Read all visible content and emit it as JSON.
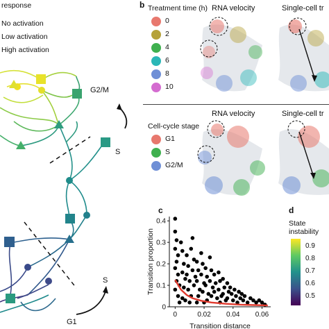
{
  "panel_a": {
    "legend_title": "response",
    "legend_items": [
      "No activation",
      "Low activation",
      "High activation"
    ],
    "labels": {
      "g2m": "G2/M",
      "s_upper": "S",
      "s_lower": "S",
      "g1": "G1"
    }
  },
  "panel_b": {
    "letter": "b",
    "treatment": {
      "title": "Treatment time (h)",
      "items": [
        {
          "label": "0",
          "color": "#e8786e"
        },
        {
          "label": "2",
          "color": "#b5a23a"
        },
        {
          "label": "4",
          "color": "#3fb04f"
        },
        {
          "label": "6",
          "color": "#2bb7b7"
        },
        {
          "label": "8",
          "color": "#6f8fd6"
        },
        {
          "label": "10",
          "color": "#d46cd0"
        }
      ]
    },
    "cellcycle": {
      "title": "Cell-cycle stage",
      "items": [
        {
          "label": "G1",
          "color": "#e8786e"
        },
        {
          "label": "S",
          "color": "#3fb04f"
        },
        {
          "label": "G2/M",
          "color": "#6f8fd6"
        }
      ]
    },
    "col_titles": [
      "RNA velocity",
      "Single-cell tr"
    ]
  },
  "panel_c": {
    "letter": "c",
    "ylabel": "Transition proportion",
    "xlabel": "Transition distance"
  },
  "panel_d": {
    "letter": "d",
    "title": "State instability",
    "ticks": [
      "0.9",
      "0.8",
      "0.7",
      "0.6",
      "0.5"
    ]
  },
  "chart_data": {
    "type": "scatter",
    "xlabel": "Transition distance",
    "ylabel": "Transition proportion",
    "xlim": [
      -0.004,
      0.066
    ],
    "ylim": [
      0,
      0.42
    ],
    "xticks": [
      0,
      0.02,
      0.04,
      0.06
    ],
    "yticks": [
      0,
      0.1,
      0.2,
      0.3,
      0.4
    ],
    "xtick_labels": [
      "0",
      "0.02",
      "0.04",
      "0.06"
    ],
    "ytick_labels": [
      "0",
      "0.1",
      "0.2",
      "0.3",
      "0.4"
    ],
    "points": [
      [
        0.0,
        0.41
      ],
      [
        0.0,
        0.35
      ],
      [
        0.001,
        0.31
      ],
      [
        0.0,
        0.27
      ],
      [
        0.002,
        0.24
      ],
      [
        0.001,
        0.21
      ],
      [
        0.0,
        0.18
      ],
      [
        0.002,
        0.15
      ],
      [
        0.001,
        0.12
      ],
      [
        0.003,
        0.1
      ],
      [
        0.0,
        0.08
      ],
      [
        0.002,
        0.05
      ],
      [
        0.004,
        0.3
      ],
      [
        0.005,
        0.26
      ],
      [
        0.006,
        0.2
      ],
      [
        0.005,
        0.16
      ],
      [
        0.007,
        0.13
      ],
      [
        0.006,
        0.09
      ],
      [
        0.008,
        0.24
      ],
      [
        0.009,
        0.19
      ],
      [
        0.008,
        0.15
      ],
      [
        0.01,
        0.12
      ],
      [
        0.009,
        0.08
      ],
      [
        0.011,
        0.05
      ],
      [
        0.012,
        0.32
      ],
      [
        0.011,
        0.27
      ],
      [
        0.013,
        0.22
      ],
      [
        0.012,
        0.17
      ],
      [
        0.014,
        0.14
      ],
      [
        0.013,
        0.1
      ],
      [
        0.015,
        0.21
      ],
      [
        0.016,
        0.17
      ],
      [
        0.015,
        0.12
      ],
      [
        0.017,
        0.08
      ],
      [
        0.016,
        0.05
      ],
      [
        0.018,
        0.25
      ],
      [
        0.019,
        0.2
      ],
      [
        0.018,
        0.15
      ],
      [
        0.02,
        0.11
      ],
      [
        0.019,
        0.07
      ],
      [
        0.021,
        0.18
      ],
      [
        0.022,
        0.14
      ],
      [
        0.021,
        0.1
      ],
      [
        0.023,
        0.06
      ],
      [
        0.022,
        0.03
      ],
      [
        0.024,
        0.23
      ],
      [
        0.025,
        0.17
      ],
      [
        0.024,
        0.12
      ],
      [
        0.026,
        0.09
      ],
      [
        0.025,
        0.05
      ],
      [
        0.027,
        0.15
      ],
      [
        0.028,
        0.11
      ],
      [
        0.027,
        0.07
      ],
      [
        0.029,
        0.04
      ],
      [
        0.03,
        0.16
      ],
      [
        0.031,
        0.12
      ],
      [
        0.03,
        0.08
      ],
      [
        0.032,
        0.05
      ],
      [
        0.031,
        0.02
      ],
      [
        0.033,
        0.13
      ],
      [
        0.034,
        0.09
      ],
      [
        0.033,
        0.06
      ],
      [
        0.035,
        0.03
      ],
      [
        0.036,
        0.11
      ],
      [
        0.037,
        0.07
      ],
      [
        0.036,
        0.04
      ],
      [
        0.038,
        0.09
      ],
      [
        0.039,
        0.06
      ],
      [
        0.04,
        0.03
      ],
      [
        0.041,
        0.08
      ],
      [
        0.042,
        0.05
      ],
      [
        0.043,
        0.02
      ],
      [
        0.044,
        0.07
      ],
      [
        0.045,
        0.04
      ],
      [
        0.046,
        0.06
      ],
      [
        0.047,
        0.03
      ],
      [
        0.048,
        0.05
      ],
      [
        0.05,
        0.02
      ],
      [
        0.052,
        0.04
      ],
      [
        0.054,
        0.03
      ],
      [
        0.056,
        0.02
      ],
      [
        0.058,
        0.03
      ],
      [
        0.06,
        0.02
      ],
      [
        0.062,
        0.01
      ],
      [
        0.005,
        0.04
      ],
      [
        0.01,
        0.02
      ],
      [
        0.015,
        0.02
      ],
      [
        0.02,
        0.02
      ],
      [
        0.003,
        0.02
      ],
      [
        0.007,
        0.03
      ]
    ],
    "fit_line": [
      [
        0.0,
        0.125
      ],
      [
        0.004,
        0.08
      ],
      [
        0.008,
        0.055
      ],
      [
        0.012,
        0.04
      ],
      [
        0.018,
        0.028
      ],
      [
        0.025,
        0.02
      ],
      [
        0.035,
        0.014
      ],
      [
        0.045,
        0.01
      ],
      [
        0.055,
        0.008
      ],
      [
        0.064,
        0.006
      ]
    ],
    "point_color": "#000000",
    "line_color": "#e03a2e"
  },
  "colorbar": {
    "stops": [
      "#fde725",
      "#5ec962",
      "#21918c",
      "#3b528b",
      "#440154"
    ]
  }
}
